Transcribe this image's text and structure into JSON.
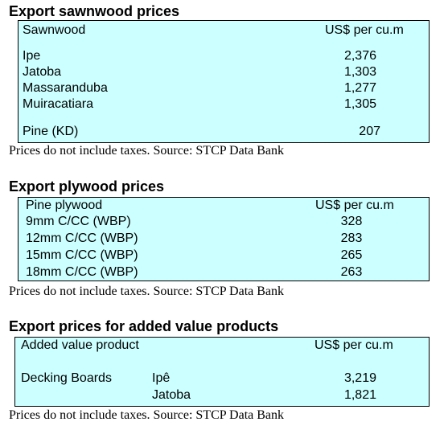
{
  "sections": [
    {
      "title": "Export sawnwood prices",
      "table": {
        "header": [
          "Sawnwood",
          "US$ per cu.m"
        ],
        "rows": [
          [
            "Ipe",
            "2,376"
          ],
          [
            "Jatoba",
            "1,303"
          ],
          [
            "Massaranduba",
            "1,277"
          ],
          [
            "Muiracatiara",
            "1,305"
          ],
          [
            "Pine (KD)",
            "207"
          ]
        ]
      },
      "note": "Prices do not include taxes. Source: STCP Data Bank"
    },
    {
      "title": "Export plywood prices",
      "table": {
        "header": [
          "Pine plywood",
          "US$ per cu.m"
        ],
        "rows": [
          [
            "9mm C/CC (WBP)",
            "328"
          ],
          [
            "12mm C/CC (WBP)",
            "283"
          ],
          [
            "15mm C/CC (WBP)",
            "265"
          ],
          [
            "18mm C/CC (WBP)",
            "263"
          ]
        ]
      },
      "note": "Prices do not include taxes. Source: STCP Data Bank"
    },
    {
      "title": "Export prices for added value products",
      "table": {
        "header": [
          "Added value product",
          "US$ per cu.m"
        ],
        "groups": [
          {
            "name": "Decking Boards",
            "items": [
              [
                "Ipê",
                "3,219"
              ],
              [
                "Jatoba",
                "1,821"
              ]
            ]
          }
        ]
      },
      "note": "Prices do not include taxes. Source: STCP Data Bank"
    }
  ]
}
